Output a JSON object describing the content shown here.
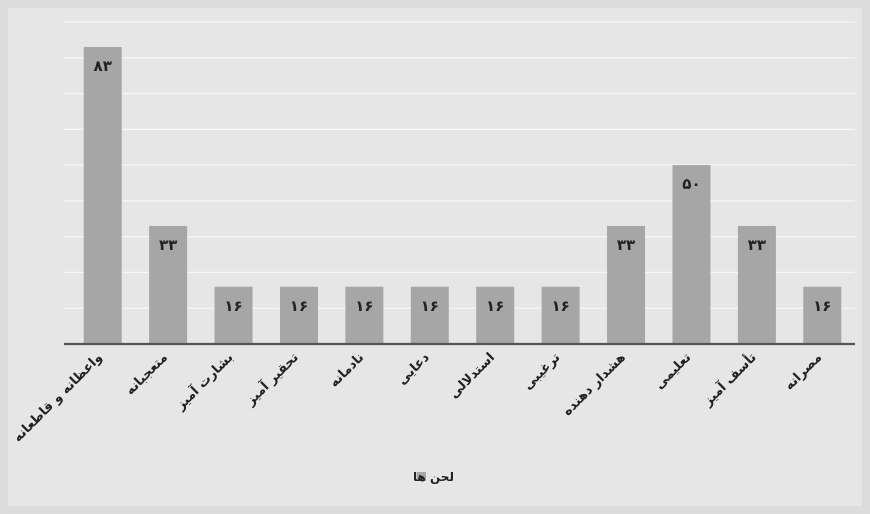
{
  "chart_data": {
    "type": "bar",
    "categories": [
      "واعظانه و قاطعانه",
      "متعجبانه",
      "بشارت آمیز",
      "تحقیر آمیز",
      "نادمانه",
      "دعایی",
      "استدلالی",
      "ترغیبی",
      "هشدار دهنده",
      "تعلیمی",
      "تأسف آمیز",
      "مصرانه"
    ],
    "series": [
      {
        "name": "لحن ها",
        "values": [
          83,
          33,
          16,
          16,
          16,
          16,
          16,
          16,
          33,
          50,
          33,
          16
        ],
        "value_labels": [
          "۸۳",
          "۳۳",
          "۱۶",
          "۱۶",
          "۱۶",
          "۱۶",
          "۱۶",
          "۱۶",
          "۳۳",
          "۵۰",
          "۳۳",
          "۱۶"
        ]
      }
    ],
    "ylim": [
      0,
      90
    ],
    "grid": true,
    "legend_position": "bottom",
    "colors": {
      "background": "#e6e6e6",
      "bar": "#a6a6a6",
      "grid": "#f7f7f7",
      "axis": "#555555",
      "text": "#222222"
    }
  }
}
